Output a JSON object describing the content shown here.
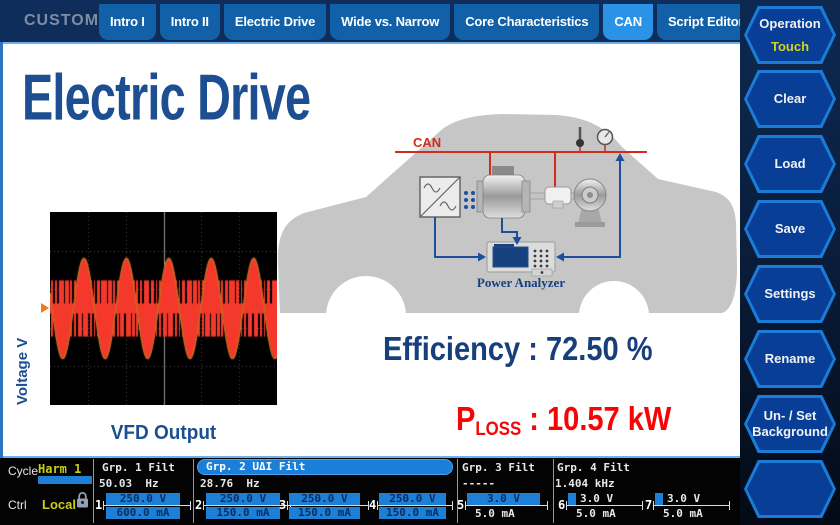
{
  "header": {
    "mode_label": "CUSTOM",
    "tabs": [
      {
        "label": "Intro I",
        "selected": false
      },
      {
        "label": "Intro II",
        "selected": false
      },
      {
        "label": "Electric Drive",
        "selected": false
      },
      {
        "label": "Wide vs. Narrow",
        "selected": false
      },
      {
        "label": "Core Characteristics",
        "selected": false
      },
      {
        "label": "CAN",
        "selected": true
      },
      {
        "label": "Script Editor",
        "selected": false
      }
    ]
  },
  "sidebar": {
    "buttons": [
      {
        "lines": [
          "Operation"
        ],
        "sublabel": "Touch"
      },
      {
        "lines": [
          "Clear"
        ]
      },
      {
        "lines": [
          "Load"
        ]
      },
      {
        "lines": [
          "Save"
        ]
      },
      {
        "lines": [
          "Settings"
        ]
      },
      {
        "lines": [
          "Rename"
        ]
      },
      {
        "lines": [
          "Un- / Set",
          "Background"
        ]
      },
      {
        "lines": []
      }
    ]
  },
  "main": {
    "title": "Electric Drive",
    "scope_ylabel": "Voltage V",
    "scope_caption": "VFD Output",
    "efficiency_label": "Efficiency",
    "efficiency_sep": " : ",
    "efficiency_value": "72.50 %",
    "ploss_base": "P",
    "ploss_sub": "LOSS",
    "ploss_sep": " : ",
    "ploss_value": "10.57 kW",
    "diagram": {
      "bus_label": "CAN",
      "analyzer_label": "Power Analyzer"
    },
    "colors": {
      "title_blue": "#1d4e92",
      "loss_red": "#f50505",
      "bus_red": "#d42a1e",
      "wire_blue": "#1b4f9e"
    }
  },
  "chart_data": {
    "type": "line",
    "title": "VFD Output",
    "ylabel": "Voltage V",
    "series": [
      {
        "name": "PWM phase voltage",
        "description": "bipolar PWM voltage with sinusoidal modulation envelope"
      }
    ],
    "modulation_cycles_visible": 5.35,
    "carrier_pulses_total": 48,
    "amplitude_divisions": 1.3,
    "grid_divisions_x": 6,
    "grid_divisions_y": 5,
    "waveform_color": "#f4392c",
    "envelope_color": "#c96a1e",
    "grid_color": "#4a4a4a",
    "centerline_color": "#9a9a9a",
    "background": "#000000"
  },
  "statusbar": {
    "cycle_label": "Cycle",
    "cycle_value": "Harm 1",
    "ctrl_label": "Ctrl",
    "ctrl_value": "Local",
    "lock_icon": "padlock-locked",
    "groups": [
      {
        "name": "Grp. 1 Filt",
        "freq": "50.03  Hz",
        "selected": false
      },
      {
        "name": "Grp. 2 UΔI Filt",
        "freq": "28.76  Hz",
        "selected": true
      },
      {
        "name": "Grp. 3 Filt",
        "freq": "-----",
        "selected": false
      },
      {
        "name": "Grp. 4 Filt",
        "freq": "1.404 kHz",
        "selected": false
      }
    ],
    "channels": [
      {
        "num": "1",
        "voltage": "250.0 V",
        "current": "600.0 mA",
        "v_bar": "full",
        "a_bar": "full"
      },
      {
        "num": "2",
        "voltage": "250.0 V",
        "current": "150.0 mA",
        "v_bar": "full",
        "a_bar": "full"
      },
      {
        "num": "3",
        "voltage": "250.0 V",
        "current": "150.0 mA",
        "v_bar": "full",
        "a_bar": "full"
      },
      {
        "num": "4",
        "voltage": "250.0 V",
        "current": "150.0 mA",
        "v_bar": "full",
        "a_bar": "full"
      },
      {
        "num": "5",
        "voltage": "3.0 V",
        "current": "5.0 mA",
        "v_bar": "full",
        "a_bar": "none"
      },
      {
        "num": "6",
        "voltage": "3.0 V",
        "current": "5.0 mA",
        "v_bar": "small",
        "a_bar": "none"
      },
      {
        "num": "7",
        "voltage": "3.0 V",
        "current": "5.0 mA",
        "v_bar": "small",
        "a_bar": "none"
      }
    ]
  }
}
